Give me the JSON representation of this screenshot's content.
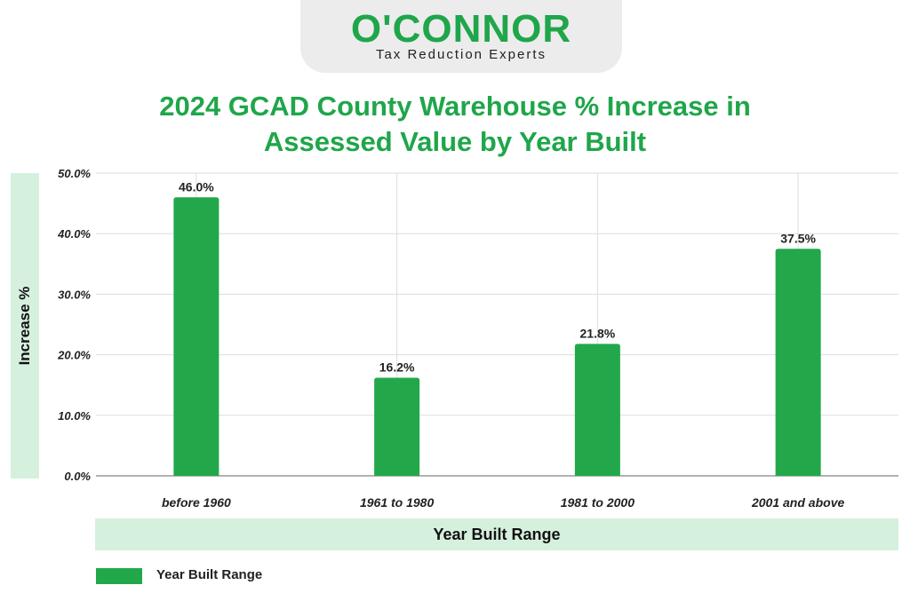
{
  "logo": {
    "brand": "O'CONNOR",
    "tagline": "Tax Reduction Experts"
  },
  "colors": {
    "accent": "#1fa64a",
    "bar": "#22a84a",
    "band": "#d6f0de",
    "grid": "#dddddd"
  },
  "chart_data": {
    "type": "bar",
    "title_line1": "2024 GCAD County Warehouse % Increase in",
    "title_line2": "Assessed Value by Year Built",
    "categories": [
      "before 1960",
      "1961 to 1980",
      "1981 to 2000",
      "2001 and above"
    ],
    "values": [
      46.0,
      16.2,
      21.8,
      37.5
    ],
    "value_labels": [
      "46.0%",
      "16.2%",
      "21.8%",
      "37.5%"
    ],
    "ylabel": "Increase %",
    "xlabel": "Year Built Range",
    "ylim": [
      0,
      50
    ],
    "yticks": [
      0,
      10,
      20,
      30,
      40,
      50
    ],
    "ytick_labels": [
      "0.0%",
      "10.0%",
      "20.0%",
      "30.0%",
      "40.0%",
      "50.0%"
    ],
    "legend": [
      "Year Built Range"
    ],
    "grid": true
  }
}
